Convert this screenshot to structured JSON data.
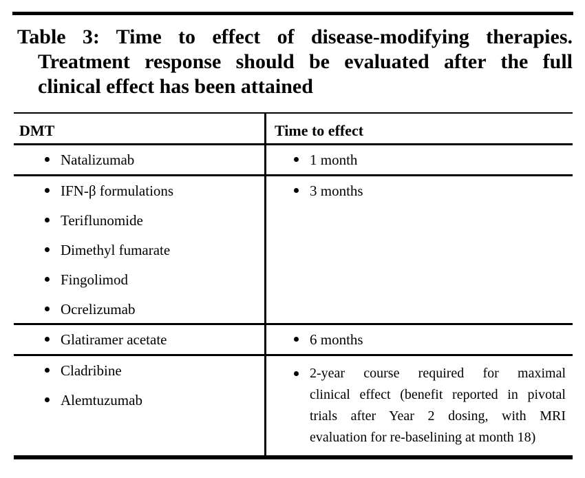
{
  "colors": {
    "text": "#000000",
    "background": "#ffffff",
    "rule": "#000000"
  },
  "caption": {
    "lines": [
      "Table 3: Time to effect of disease-modifying therapies.",
      "Treatment response should be evaluated after the full",
      "clinical effect has been attained"
    ]
  },
  "table": {
    "columns": [
      "DMT",
      "Time to effect"
    ],
    "rows": [
      {
        "dmt": [
          "Natalizumab"
        ],
        "time": [
          "1 month"
        ]
      },
      {
        "dmt": [
          "IFN-β formulations",
          "Teriflunomide",
          "Dimethyl fumarate",
          "Fingolimod",
          "Ocrelizumab"
        ],
        "time": [
          "3 months"
        ]
      },
      {
        "dmt": [
          "Glatiramer acetate"
        ],
        "time": [
          "6 months"
        ]
      },
      {
        "dmt": [
          "Cladribine",
          "Alemtuzumab"
        ],
        "time_lines": [
          "2-year course required for maximal",
          "clinical effect (benefit reported in pivotal",
          "trials after Year 2 dosing, with MRI",
          "evaluation for re-baselining at month 18)"
        ]
      }
    ]
  }
}
